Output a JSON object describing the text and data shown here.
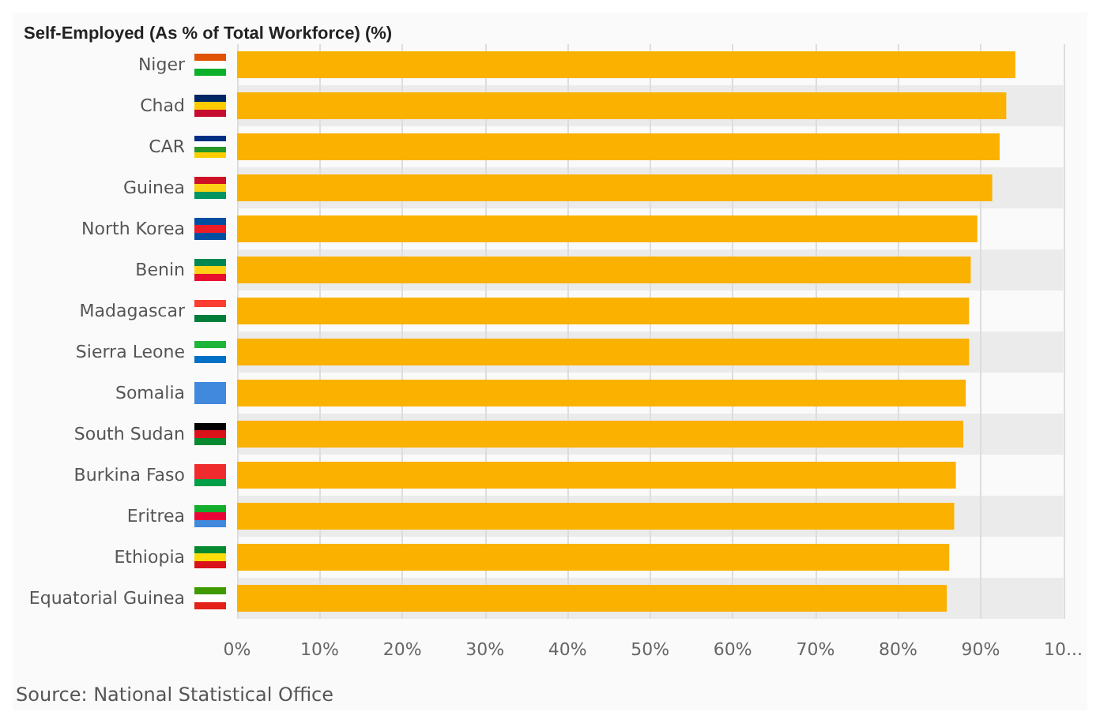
{
  "chart_data": {
    "type": "bar",
    "orientation": "horizontal",
    "title": "Self-Employed (As % of Total Workforce) (%)",
    "categories": [
      "Niger",
      "Chad",
      "CAR",
      "Guinea",
      "North Korea",
      "Benin",
      "Madagascar",
      "Sierra Leone",
      "Somalia",
      "South Sudan",
      "Burkina Faso",
      "Eritrea",
      "Ethiopia",
      "Equatorial Guinea"
    ],
    "values": [
      94.2,
      93.1,
      92.3,
      91.4,
      89.6,
      88.8,
      88.6,
      88.6,
      88.2,
      87.9,
      87.0,
      86.8,
      86.2,
      85.9
    ],
    "color": "#fbb100",
    "xlim": [
      0,
      100
    ],
    "xticks": [
      {
        "value": 0,
        "label": "0%"
      },
      {
        "value": 10,
        "label": "10%"
      },
      {
        "value": 20,
        "label": "20%"
      },
      {
        "value": 30,
        "label": "30%"
      },
      {
        "value": 40,
        "label": "40%"
      },
      {
        "value": 50,
        "label": "50%"
      },
      {
        "value": 60,
        "label": "60%"
      },
      {
        "value": 70,
        "label": "70%"
      },
      {
        "value": 80,
        "label": "80%"
      },
      {
        "value": 90,
        "label": "90%"
      },
      {
        "value": 100,
        "label": "10..."
      }
    ],
    "grid": "x",
    "annotations": [
      "Source: National Statistical Office"
    ]
  }
}
